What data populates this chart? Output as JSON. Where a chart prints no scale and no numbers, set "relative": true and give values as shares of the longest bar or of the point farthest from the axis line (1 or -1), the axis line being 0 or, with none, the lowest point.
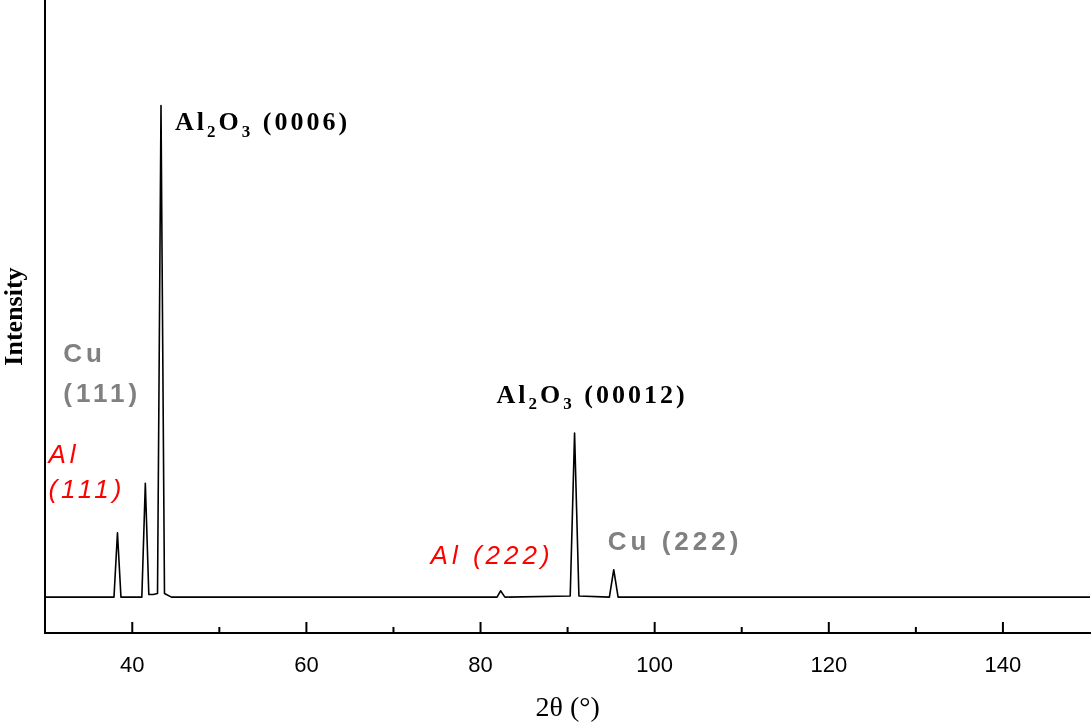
{
  "chart_data": {
    "type": "line",
    "relative": true,
    "xlabel": "2θ (°)",
    "ylabel": "Intensity",
    "xlim": [
      30,
      150
    ],
    "xticks": [
      40,
      {
        "value": 50,
        "label": null
      },
      60,
      {
        "value": 70,
        "label": null
      },
      80,
      {
        "value": 90,
        "label": null
      },
      100,
      {
        "value": 110,
        "label": null
      },
      120,
      {
        "value": 130,
        "label": null
      },
      140
    ],
    "marker": "none",
    "line_style": "solid",
    "series": [
      {
        "color": "#000000",
        "x": [
          30,
          37.9,
          38.3,
          38.7,
          41.1,
          41.5,
          41.9,
          42.4,
          42.9,
          43.3,
          43.7,
          44.5,
          81.9,
          82.3,
          82.8,
          90.3,
          90.8,
          91.3,
          94.8,
          95.3,
          95.8,
          150
        ],
        "values": [
          0.068,
          0.068,
          0.19,
          0.068,
          0.068,
          0.284,
          0.073,
          0.073,
          0.075,
          1.0,
          0.075,
          0.068,
          0.068,
          0.08,
          0.068,
          0.07,
          0.379,
          0.07,
          0.068,
          0.12,
          0.068,
          0.068
        ]
      }
    ],
    "annotations": [
      {
        "text": "Al (111)",
        "x": 38.3,
        "y": 0.19
      },
      {
        "text": "Cu (111)",
        "x": 41.5,
        "y": 0.284
      },
      {
        "text": "Al$_{2}$O$_{3}$ (0006)",
        "x": 43.3,
        "y": 1.0
      },
      {
        "text": "Al (222)",
        "x": 82.3,
        "y": 0.08
      },
      {
        "text": "Al$_{2}$O$_{3}$ (00012)",
        "x": 90.8,
        "y": 0.379
      },
      {
        "text": "Cu (222)",
        "x": 95.3,
        "y": 0.12
      }
    ]
  }
}
